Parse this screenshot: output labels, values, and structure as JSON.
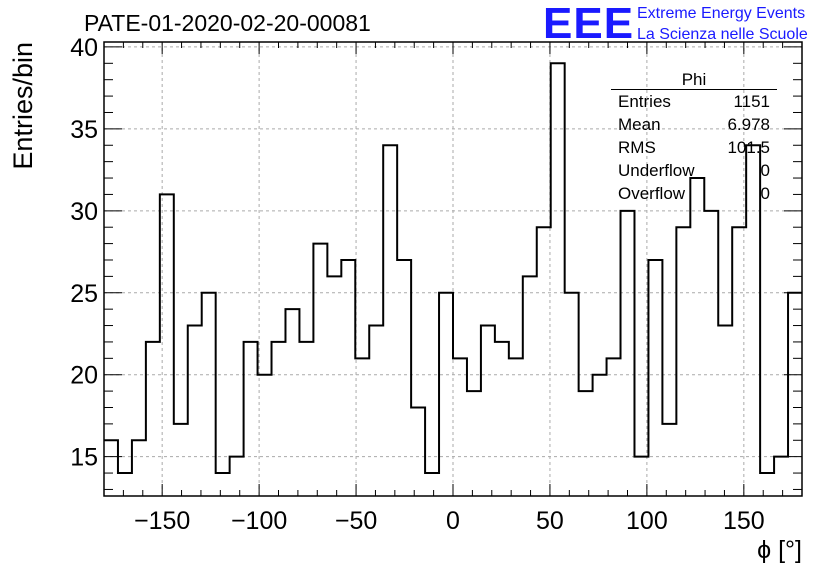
{
  "title": "PATE-01-2020-02-20-00081",
  "logo": {
    "text": "EEE",
    "line1": "Extreme Energy Events",
    "line2": "La Scienza nelle Scuole",
    "color": "#1a1aff"
  },
  "stats": {
    "title": "Phi",
    "rows": [
      {
        "label": "Entries",
        "value": "1151"
      },
      {
        "label": "Mean",
        "value": "6.978"
      },
      {
        "label": "RMS",
        "value": "101.5"
      },
      {
        "label": "Underflow",
        "value": "0"
      },
      {
        "label": "Overflow",
        "value": "0"
      }
    ]
  },
  "chart_data": {
    "type": "histogram",
    "xlabel": "ϕ [°]",
    "ylabel": "Entries/bin",
    "xlim": [
      -180,
      180
    ],
    "ylim": [
      12.6,
      40.3
    ],
    "xticks": [
      -150,
      -100,
      -50,
      0,
      50,
      100,
      150
    ],
    "yticks": [
      15,
      20,
      25,
      30,
      35,
      40
    ],
    "grid": true,
    "bin_edges_start": -180,
    "bin_width": 7.2,
    "values": [
      16,
      14,
      16,
      22,
      31,
      17,
      23,
      25,
      14,
      15,
      22,
      20,
      22,
      24,
      22,
      28,
      26,
      27,
      21,
      23,
      34,
      27,
      18,
      14,
      25,
      21,
      19,
      23,
      22,
      21,
      26,
      29,
      39,
      25,
      19,
      20,
      21,
      30,
      15,
      27,
      17,
      29,
      32,
      30,
      23,
      29,
      34,
      14,
      15,
      25
    ]
  }
}
